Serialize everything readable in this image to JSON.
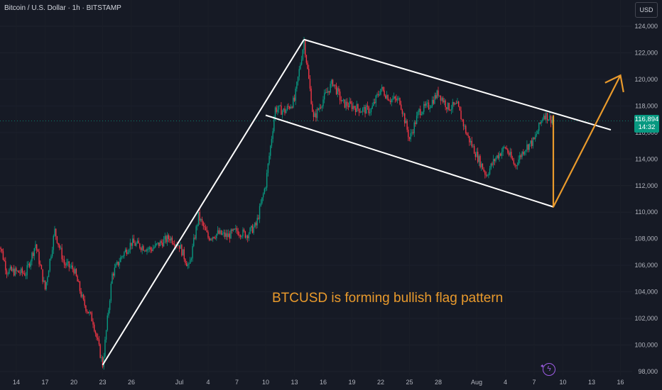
{
  "header": {
    "title": "Bitcoin / U.S. Dollar · 1h · BITSTAMP",
    "currency_button": "USD"
  },
  "price_tag": {
    "price": "116,894",
    "countdown": "14:32"
  },
  "annotation": "BTCUSD is forming bullish flag pattern",
  "colors": {
    "background": "#161a25",
    "up_candle": "#089981",
    "down_candle": "#f23645",
    "pattern_lines": "#ffffff",
    "projection": "#e99a2c",
    "axis_text": "#b2b5be"
  },
  "chart_data": {
    "type": "candlestick",
    "symbol": "BTCUSD",
    "timeframe": "1h",
    "exchange": "BITSTAMP",
    "ylim": [
      98000,
      124000
    ],
    "y_ticks": [
      98000,
      100000,
      102000,
      104000,
      106000,
      108000,
      110000,
      112000,
      114000,
      116000,
      118000,
      120000,
      122000,
      124000
    ],
    "y_tick_labels": [
      "98,000",
      "100,000",
      "102,000",
      "104,000",
      "106,000",
      "108,000",
      "110,000",
      "112,000",
      "114,000",
      "116,000",
      "118,000",
      "120,000",
      "122,000",
      "124,000"
    ],
    "x_tick_labels": [
      "14",
      "17",
      "20",
      "23",
      "26",
      "Jul",
      "4",
      "7",
      "10",
      "13",
      "16",
      "19",
      "22",
      "25",
      "28",
      "Aug",
      "4",
      "7",
      "10",
      "13",
      "16"
    ],
    "last_price": 116894,
    "path_points": [
      {
        "date": "Jun 12",
        "price": 108300
      },
      {
        "date": "Jun 13",
        "price": 105600
      },
      {
        "date": "Jun 15",
        "price": 105400
      },
      {
        "date": "Jun 16",
        "price": 107600
      },
      {
        "date": "Jun 17",
        "price": 104200
      },
      {
        "date": "Jun 18",
        "price": 108600
      },
      {
        "date": "Jun 19",
        "price": 106100
      },
      {
        "date": "Jun 20",
        "price": 105700
      },
      {
        "date": "Jun 21",
        "price": 103200
      },
      {
        "date": "Jun 22",
        "price": 101800
      },
      {
        "date": "Jun 23",
        "price": 98500
      },
      {
        "date": "Jun 24",
        "price": 105300
      },
      {
        "date": "Jun 25",
        "price": 106700
      },
      {
        "date": "Jun 26",
        "price": 107700
      },
      {
        "date": "Jun 28",
        "price": 107200
      },
      {
        "date": "Jun 30",
        "price": 108100
      },
      {
        "date": "Jul 1",
        "price": 107500
      },
      {
        "date": "Jul 2",
        "price": 105800
      },
      {
        "date": "Jul 3",
        "price": 109700
      },
      {
        "date": "Jul 4",
        "price": 108100
      },
      {
        "date": "Jul 5",
        "price": 108400
      },
      {
        "date": "Jul 6",
        "price": 108200
      },
      {
        "date": "Jul 7",
        "price": 108600
      },
      {
        "date": "Jul 8",
        "price": 108300
      },
      {
        "date": "Jul 9",
        "price": 109000
      },
      {
        "date": "Jul 10",
        "price": 112100
      },
      {
        "date": "Jul 11",
        "price": 117800
      },
      {
        "date": "Jul 12",
        "price": 117600
      },
      {
        "date": "Jul 13",
        "price": 118400
      },
      {
        "date": "Jul 14",
        "price": 122900
      },
      {
        "date": "Jul 15",
        "price": 117000
      },
      {
        "date": "Jul 16",
        "price": 118500
      },
      {
        "date": "Jul 17",
        "price": 119800
      },
      {
        "date": "Jul 18",
        "price": 118200
      },
      {
        "date": "Jul 19",
        "price": 118000
      },
      {
        "date": "Jul 20",
        "price": 117700
      },
      {
        "date": "Jul 21",
        "price": 117700
      },
      {
        "date": "Jul 22",
        "price": 119300
      },
      {
        "date": "Jul 23",
        "price": 118500
      },
      {
        "date": "Jul 24",
        "price": 118400
      },
      {
        "date": "Jul 25",
        "price": 115500
      },
      {
        "date": "Jul 26",
        "price": 117600
      },
      {
        "date": "Jul 27",
        "price": 118000
      },
      {
        "date": "Jul 28",
        "price": 119000
      },
      {
        "date": "Jul 29",
        "price": 117900
      },
      {
        "date": "Jul 30",
        "price": 118000
      },
      {
        "date": "Jul 31",
        "price": 115800
      },
      {
        "date": "Aug 1",
        "price": 114300
      },
      {
        "date": "Aug 2",
        "price": 112800
      },
      {
        "date": "Aug 3",
        "price": 114100
      },
      {
        "date": "Aug 4",
        "price": 114900
      },
      {
        "date": "Aug 5",
        "price": 113500
      },
      {
        "date": "Aug 6",
        "price": 114800
      },
      {
        "date": "Aug 7",
        "price": 115400
      },
      {
        "date": "Aug 8",
        "price": 117400
      },
      {
        "date": "Aug 9",
        "price": 116894
      }
    ],
    "trendlines": [
      {
        "name": "flagpole",
        "from": {
          "date": "Jun 23",
          "price": 98500
        },
        "to": {
          "date": "Jul 14",
          "price": 123000
        }
      },
      {
        "name": "flag-top",
        "from": {
          "date": "Jul 14",
          "price": 123000
        },
        "to": {
          "date": "Aug 15",
          "price": 116200
        }
      },
      {
        "name": "flag-bottom",
        "from": {
          "date": "Jul 10",
          "price": 117300
        },
        "to": {
          "date": "Aug 9",
          "price": 110400
        }
      }
    ],
    "projection": [
      {
        "date": "Aug 9",
        "price": 117300
      },
      {
        "date": "Aug 9",
        "price": 110400
      },
      {
        "date": "Aug 16",
        "price": 120300
      }
    ]
  }
}
